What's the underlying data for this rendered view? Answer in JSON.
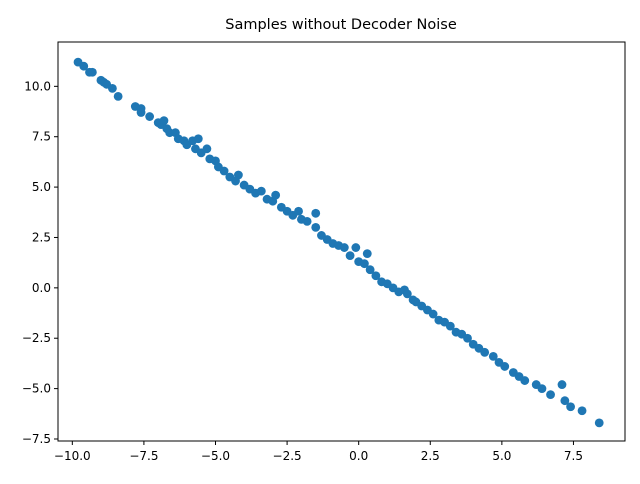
{
  "chart_data": {
    "type": "scatter",
    "title": "Samples without Decoder Noise",
    "xlabel": "",
    "ylabel": "",
    "xlim": [
      -10.5,
      9.3
    ],
    "ylim": [
      -7.6,
      12.2
    ],
    "xticks": [
      -10.0,
      -7.5,
      -5.0,
      -2.5,
      0.0,
      2.5,
      5.0,
      7.5
    ],
    "xtick_labels": [
      "−10.0",
      "−7.5",
      "−5.0",
      "−2.5",
      "0.0",
      "2.5",
      "5.0",
      "7.5"
    ],
    "yticks": [
      -7.5,
      -5.0,
      -2.5,
      0.0,
      2.5,
      5.0,
      7.5,
      10.0
    ],
    "ytick_labels": [
      "−7.5",
      "−5.0",
      "−2.5",
      "0.0",
      "2.5",
      "5.0",
      "7.5",
      "10.0"
    ],
    "grid": false,
    "series": [
      {
        "color": "#1f77b4",
        "points": [
          [
            -9.8,
            11.2
          ],
          [
            -9.6,
            11.0
          ],
          [
            -9.4,
            10.7
          ],
          [
            -9.3,
            10.7
          ],
          [
            -9.0,
            10.3
          ],
          [
            -8.9,
            10.2
          ],
          [
            -8.8,
            10.1
          ],
          [
            -8.6,
            9.9
          ],
          [
            -8.4,
            9.5
          ],
          [
            -7.8,
            9.0
          ],
          [
            -7.6,
            8.9
          ],
          [
            -7.6,
            8.7
          ],
          [
            -7.3,
            8.5
          ],
          [
            -7.0,
            8.2
          ],
          [
            -6.9,
            8.1
          ],
          [
            -6.8,
            8.3
          ],
          [
            -6.7,
            7.9
          ],
          [
            -6.6,
            7.7
          ],
          [
            -6.4,
            7.7
          ],
          [
            -6.3,
            7.4
          ],
          [
            -6.1,
            7.3
          ],
          [
            -6.0,
            7.1
          ],
          [
            -5.8,
            7.3
          ],
          [
            -5.6,
            7.4
          ],
          [
            -5.7,
            6.9
          ],
          [
            -5.5,
            6.7
          ],
          [
            -5.3,
            6.9
          ],
          [
            -5.2,
            6.4
          ],
          [
            -5.0,
            6.3
          ],
          [
            -4.9,
            6.0
          ],
          [
            -4.7,
            5.8
          ],
          [
            -4.5,
            5.5
          ],
          [
            -4.3,
            5.3
          ],
          [
            -4.2,
            5.6
          ],
          [
            -4.0,
            5.1
          ],
          [
            -3.8,
            4.9
          ],
          [
            -3.6,
            4.7
          ],
          [
            -3.4,
            4.8
          ],
          [
            -3.2,
            4.4
          ],
          [
            -3.0,
            4.3
          ],
          [
            -2.9,
            4.6
          ],
          [
            -2.7,
            4.0
          ],
          [
            -2.5,
            3.8
          ],
          [
            -2.3,
            3.6
          ],
          [
            -2.1,
            3.8
          ],
          [
            -2.0,
            3.4
          ],
          [
            -1.8,
            3.3
          ],
          [
            -1.5,
            3.7
          ],
          [
            -1.5,
            3.0
          ],
          [
            -1.3,
            2.6
          ],
          [
            -1.1,
            2.4
          ],
          [
            -0.9,
            2.2
          ],
          [
            -0.7,
            2.1
          ],
          [
            -0.5,
            2.0
          ],
          [
            -0.3,
            1.6
          ],
          [
            -0.1,
            2.0
          ],
          [
            0.0,
            1.3
          ],
          [
            0.2,
            1.2
          ],
          [
            0.3,
            1.7
          ],
          [
            0.4,
            0.9
          ],
          [
            0.6,
            0.6
          ],
          [
            0.8,
            0.3
          ],
          [
            1.0,
            0.2
          ],
          [
            1.2,
            0.0
          ],
          [
            1.4,
            -0.2
          ],
          [
            1.6,
            -0.1
          ],
          [
            1.7,
            -0.3
          ],
          [
            1.9,
            -0.6
          ],
          [
            2.0,
            -0.7
          ],
          [
            2.2,
            -0.9
          ],
          [
            2.4,
            -1.1
          ],
          [
            2.6,
            -1.3
          ],
          [
            2.8,
            -1.6
          ],
          [
            3.0,
            -1.7
          ],
          [
            3.2,
            -1.9
          ],
          [
            3.4,
            -2.2
          ],
          [
            3.6,
            -2.3
          ],
          [
            3.8,
            -2.5
          ],
          [
            4.0,
            -2.8
          ],
          [
            4.2,
            -3.0
          ],
          [
            4.4,
            -3.2
          ],
          [
            4.7,
            -3.4
          ],
          [
            4.9,
            -3.7
          ],
          [
            5.1,
            -3.9
          ],
          [
            5.4,
            -4.2
          ],
          [
            5.6,
            -4.4
          ],
          [
            5.8,
            -4.6
          ],
          [
            6.2,
            -4.8
          ],
          [
            6.4,
            -5.0
          ],
          [
            6.7,
            -5.3
          ],
          [
            7.1,
            -4.8
          ],
          [
            7.2,
            -5.6
          ],
          [
            7.4,
            -5.9
          ],
          [
            7.8,
            -6.1
          ],
          [
            8.4,
            -6.7
          ]
        ]
      }
    ]
  }
}
